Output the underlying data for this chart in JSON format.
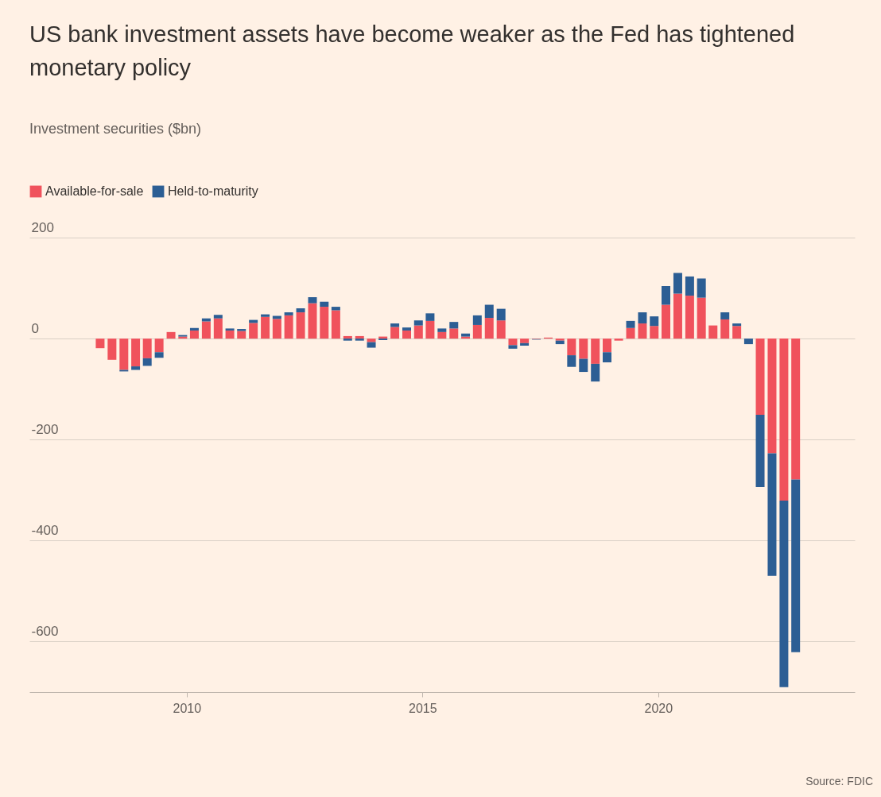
{
  "chart_data": {
    "type": "bar",
    "title": "US bank investment assets have become weaker as the Fed has tightened monetary policy",
    "subtitle": "Investment securities ($bn)",
    "annotations": [
      "Source: FDIC"
    ],
    "stacked": true,
    "legend": "top left",
    "grid": "y",
    "x": [
      "2008-03",
      "2008-06",
      "2008-09",
      "2008-12",
      "2009-03",
      "2009-06",
      "2009-09",
      "2009-12",
      "2010-03",
      "2010-06",
      "2010-09",
      "2010-12",
      "2011-03",
      "2011-06",
      "2011-09",
      "2011-12",
      "2012-03",
      "2012-06",
      "2012-09",
      "2012-12",
      "2013-03",
      "2013-06",
      "2013-09",
      "2013-12",
      "2014-03",
      "2014-06",
      "2014-09",
      "2014-12",
      "2015-03",
      "2015-06",
      "2015-09",
      "2015-12",
      "2016-03",
      "2016-06",
      "2016-09",
      "2016-12",
      "2017-03",
      "2017-06",
      "2017-09",
      "2017-12",
      "2018-03",
      "2018-06",
      "2018-09",
      "2018-12",
      "2019-03",
      "2019-06",
      "2019-09",
      "2019-12",
      "2020-03",
      "2020-06",
      "2020-09",
      "2020-12",
      "2021-03",
      "2021-06",
      "2021-09",
      "2021-12",
      "2022-03",
      "2022-06",
      "2022-09",
      "2022-12"
    ],
    "series": [
      {
        "name": "Available-for-sale",
        "color": "#f0525c",
        "values": [
          -19,
          -42,
          -62,
          -55,
          -39,
          -27,
          13,
          4,
          16,
          34,
          40,
          16,
          15,
          31,
          43,
          39,
          46,
          52,
          70,
          63,
          56,
          5,
          5,
          -7,
          4,
          23,
          16,
          26,
          35,
          13,
          20,
          4,
          27,
          41,
          36,
          -13,
          -9,
          -1,
          2,
          -4,
          -33,
          -40,
          -50,
          -27,
          -4,
          21,
          30,
          25,
          67,
          89,
          85,
          81,
          26,
          38,
          25,
          0,
          -151,
          -227,
          -321,
          -279
        ]
      },
      {
        "name": "Held-to-maturity",
        "color": "#2c5e94",
        "values": [
          0,
          0,
          -3,
          -7,
          -15,
          -11,
          0,
          3,
          5,
          6,
          7,
          4,
          4,
          6,
          5,
          6,
          6,
          8,
          12,
          10,
          7,
          -4,
          -4,
          -11,
          -3,
          7,
          6,
          10,
          15,
          7,
          13,
          6,
          19,
          26,
          23,
          -7,
          -5,
          -1,
          0,
          -7,
          -23,
          -26,
          -35,
          -20,
          0,
          14,
          22,
          19,
          37,
          41,
          38,
          38,
          0,
          14,
          5,
          -11,
          -143,
          -243,
          -369,
          -342
        ]
      }
    ],
    "xlim": [
      "2006-10",
      "2024-02"
    ],
    "xticks": [
      "2010",
      "2015",
      "2020"
    ],
    "ylim": [
      -700,
      200
    ],
    "yticks": [
      200,
      0,
      -200,
      -400,
      -600
    ]
  }
}
